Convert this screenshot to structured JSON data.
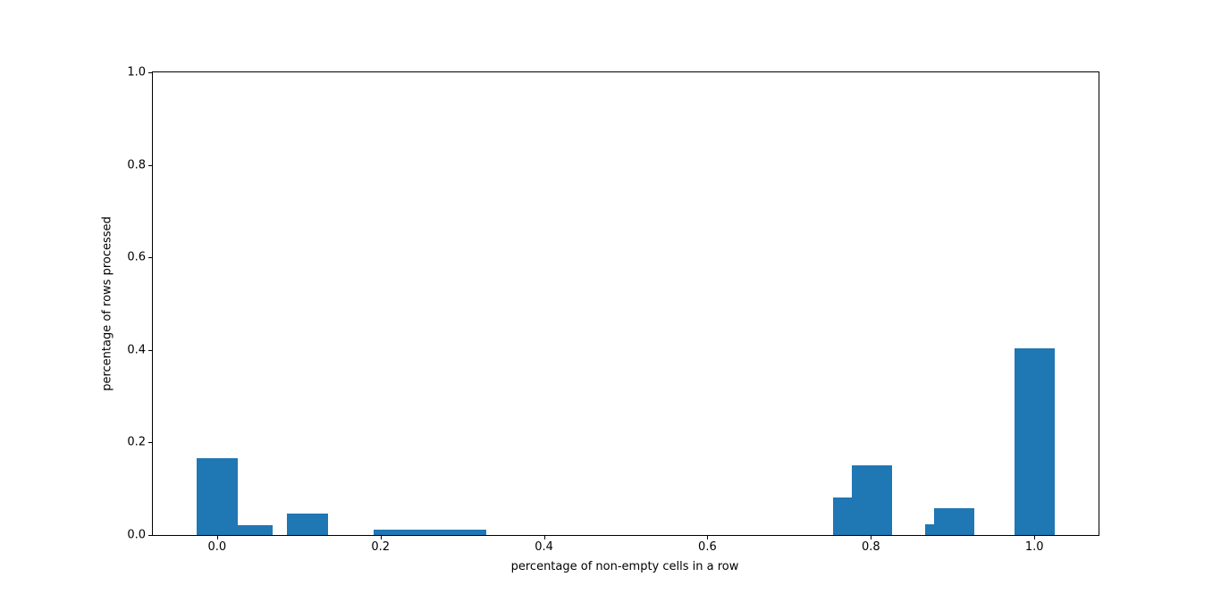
{
  "chart_data": {
    "type": "bar",
    "title": "",
    "xlabel": "percentage of non-empty cells in a row",
    "ylabel": "percentage of rows processed",
    "xlim": [
      -0.0785,
      1.0785
    ],
    "ylim": [
      0.0,
      1.0
    ],
    "x_ticks": [
      0.0,
      0.2,
      0.4,
      0.6,
      0.8,
      1.0
    ],
    "x_tick_labels": [
      "0.0",
      "0.2",
      "0.4",
      "0.6",
      "0.8",
      "1.0"
    ],
    "y_ticks": [
      0.0,
      0.2,
      0.4,
      0.6,
      0.8,
      1.0
    ],
    "y_tick_labels": [
      "0.0",
      "0.2",
      "0.4",
      "0.6",
      "0.8",
      "1.0"
    ],
    "grid": false,
    "legend_position": "none",
    "bar_width": 0.05,
    "bar_color": "#1f77b4",
    "bars": [
      {
        "x": 0.0,
        "height": 0.1665
      },
      {
        "x": 0.0436,
        "height": 0.0218
      },
      {
        "x": 0.111,
        "height": 0.0469
      },
      {
        "x": 0.2168,
        "height": 0.0122
      },
      {
        "x": 0.261,
        "height": 0.0122
      },
      {
        "x": 0.305,
        "height": 0.0122
      },
      {
        "x": 0.779,
        "height": 0.0804
      },
      {
        "x": 0.8015,
        "height": 0.151
      },
      {
        "x": 0.8908,
        "height": 0.0226
      },
      {
        "x": 0.9019,
        "height": 0.0573
      },
      {
        "x": 1.0005,
        "height": 0.4031
      }
    ]
  },
  "colors": {
    "background": "#ffffff",
    "axes_edge": "#000000",
    "tick_text": "#000000",
    "bar": "#1f77b4"
  }
}
